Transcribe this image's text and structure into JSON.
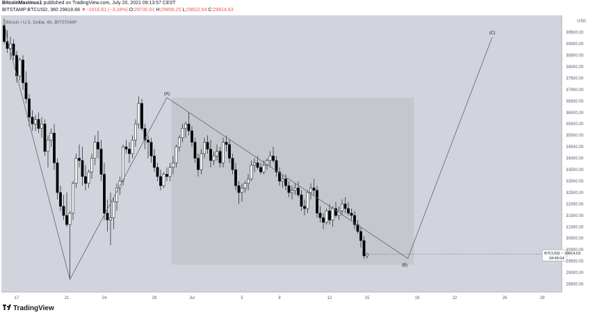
{
  "header": {
    "author": "BitcoinMaximus1",
    "published": "published on TradingView.com, July 20, 2021 09:13:57 CEST",
    "symbol_interval": "BITSTAMP:BTCUSD, 360",
    "last_price": "29818.68",
    "change_arrow": "▼",
    "change": "−1010.61 (−3.28%)",
    "open_label": "O:",
    "open": "29730.01",
    "high_label": "H:",
    "high": "29858.25",
    "low_label": "L:",
    "low": "29622.54",
    "close_label": "C:",
    "close": "29814.63"
  },
  "footer": {
    "brand": "TradingView"
  },
  "colors": {
    "chart_bg": "#d1d4dc",
    "box_fill": "#c3c5cc",
    "up": "#ffffff",
    "down": "#000000",
    "wick": "#2a2e39",
    "line": "#6b6e78",
    "axis_text": "#555965"
  },
  "chart_data": {
    "type": "candlestick",
    "title": "Bitcoin / U.S. Dollar, 6h, BITSTAMP",
    "currency": "USD",
    "price_label": "BTCUSD",
    "price_value": "29814.63",
    "countdown": "04:46:04",
    "y_ticks": [
      28500,
      29000,
      29500,
      30000,
      30500,
      31000,
      31500,
      32000,
      32500,
      33000,
      33500,
      34000,
      34500,
      35000,
      35500,
      36000,
      36500,
      37000,
      37500,
      38000,
      38500,
      39000,
      39500
    ],
    "y_tick_labels": [
      "28500.00",
      "29000.00",
      "29500.00",
      "30000.00",
      "30500.00",
      "31000.00",
      "31500.00",
      "32000.00",
      "32500.00",
      "33000.00",
      "33500.00",
      "34000.00",
      "34500.00",
      "35000.00",
      "35500.00",
      "36000.00",
      "36500.00",
      "37000.00",
      "37500.00",
      "38000.00",
      "38500.00",
      "39000.00",
      "39500.00"
    ],
    "ylim": [
      28150,
      40250
    ],
    "x_ticks": [
      {
        "label": "17",
        "bar": 4
      },
      {
        "label": "21",
        "bar": 20
      },
      {
        "label": "24",
        "bar": 32
      },
      {
        "label": "28",
        "bar": 48
      },
      {
        "label": "Jul",
        "bar": 60
      },
      {
        "label": "5",
        "bar": 76
      },
      {
        "label": "8",
        "bar": 88
      },
      {
        "label": "12",
        "bar": 104
      },
      {
        "label": "15",
        "bar": 116
      },
      {
        "label": "19",
        "bar": 132
      },
      {
        "label": "22",
        "bar": 144
      },
      {
        "label": "26",
        "bar": 160
      },
      {
        "label": "29",
        "bar": 172
      }
    ],
    "candles": [
      [
        39800,
        40100,
        39000,
        39100
      ],
      [
        39100,
        39600,
        38600,
        38800
      ],
      [
        38800,
        39300,
        38300,
        39000
      ],
      [
        39000,
        39200,
        38300,
        38500
      ],
      [
        38500,
        38700,
        37300,
        37600
      ],
      [
        37600,
        38400,
        37400,
        38300
      ],
      [
        38300,
        38500,
        37000,
        37300
      ],
      [
        37300,
        37800,
        36400,
        36600
      ],
      [
        36600,
        36800,
        35400,
        35800
      ],
      [
        35800,
        36100,
        35200,
        35500
      ],
      [
        35500,
        35900,
        35200,
        35700
      ],
      [
        35700,
        36000,
        35100,
        35300
      ],
      [
        35300,
        35800,
        34900,
        35500
      ],
      [
        35500,
        35700,
        34100,
        34300
      ],
      [
        34300,
        35000,
        33600,
        34800
      ],
      [
        34800,
        35300,
        34500,
        35100
      ],
      [
        35100,
        35500,
        33500,
        33800
      ],
      [
        33800,
        34000,
        32200,
        32500
      ],
      [
        32500,
        32800,
        31700,
        31900
      ],
      [
        31900,
        32400,
        31300,
        31500
      ],
      [
        31500,
        32500,
        31000,
        31100
      ],
      [
        31100,
        31700,
        28700,
        31600
      ],
      [
        31600,
        33000,
        31300,
        32900
      ],
      [
        32900,
        34200,
        32700,
        34000
      ],
      [
        34000,
        34600,
        33600,
        33900
      ],
      [
        33900,
        34500,
        32800,
        33200
      ],
      [
        33200,
        33700,
        32600,
        32900
      ],
      [
        32900,
        33500,
        32700,
        33400
      ],
      [
        33400,
        34200,
        33100,
        34000
      ],
      [
        34000,
        35000,
        33700,
        34700
      ],
      [
        34700,
        35200,
        34000,
        34400
      ],
      [
        34400,
        34800,
        33000,
        33300
      ],
      [
        33300,
        33800,
        31300,
        31600
      ],
      [
        31600,
        32200,
        30800,
        31300
      ],
      [
        31300,
        32500,
        30200,
        31400
      ],
      [
        31400,
        32300,
        30900,
        32100
      ],
      [
        32100,
        32900,
        31700,
        32700
      ],
      [
        32700,
        33200,
        32400,
        33000
      ],
      [
        33000,
        34600,
        32800,
        34500
      ],
      [
        34500,
        34800,
        34200,
        34400
      ],
      [
        34400,
        34700,
        33800,
        34200
      ],
      [
        34200,
        35000,
        34000,
        34800
      ],
      [
        34800,
        35700,
        34500,
        35500
      ],
      [
        35500,
        36700,
        35300,
        36400
      ],
      [
        36400,
        36600,
        35200,
        35300
      ],
      [
        35300,
        35500,
        34400,
        34800
      ],
      [
        34800,
        35000,
        34000,
        34700
      ],
      [
        34700,
        34900,
        33800,
        34100
      ],
      [
        34100,
        34400,
        33400,
        33600
      ],
      [
        33600,
        33800,
        33000,
        33200
      ],
      [
        33200,
        33500,
        32600,
        32800
      ],
      [
        32800,
        33400,
        32700,
        33300
      ],
      [
        33300,
        33600,
        33000,
        33200
      ],
      [
        33200,
        33800,
        33000,
        33600
      ],
      [
        33600,
        34100,
        33300,
        33800
      ],
      [
        33800,
        34600,
        33600,
        34500
      ],
      [
        34500,
        35000,
        34300,
        34900
      ],
      [
        34900,
        35500,
        34700,
        35300
      ],
      [
        35300,
        35600,
        34900,
        35500
      ],
      [
        35500,
        36000,
        35000,
        35200
      ],
      [
        35200,
        35400,
        34500,
        34700
      ],
      [
        34700,
        34900,
        33800,
        34000
      ],
      [
        34000,
        34200,
        33200,
        33500
      ],
      [
        33500,
        34400,
        33300,
        34200
      ],
      [
        34200,
        34900,
        34000,
        34700
      ],
      [
        34700,
        35000,
        34200,
        34400
      ],
      [
        34400,
        34800,
        33600,
        33900
      ],
      [
        33900,
        34300,
        33700,
        34100
      ],
      [
        34100,
        34600,
        33900,
        34300
      ],
      [
        34300,
        34500,
        33600,
        33800
      ],
      [
        33800,
        34900,
        33600,
        34700
      ],
      [
        34700,
        35000,
        34300,
        34600
      ],
      [
        34600,
        34800,
        33800,
        34000
      ],
      [
        34000,
        34200,
        33300,
        33500
      ],
      [
        33500,
        33800,
        32600,
        32800
      ],
      [
        32800,
        33000,
        32000,
        32500
      ],
      [
        32500,
        32900,
        32100,
        32700
      ],
      [
        32700,
        33000,
        32500,
        32900
      ],
      [
        32900,
        33300,
        32600,
        33100
      ],
      [
        33100,
        33900,
        33000,
        33700
      ],
      [
        33700,
        34000,
        33400,
        33800
      ],
      [
        33800,
        34100,
        33500,
        33600
      ],
      [
        33600,
        33800,
        33300,
        33400
      ],
      [
        33400,
        33900,
        33300,
        33700
      ],
      [
        33700,
        34000,
        33500,
        33900
      ],
      [
        33900,
        34300,
        33600,
        34100
      ],
      [
        34100,
        34500,
        33800,
        33900
      ],
      [
        33900,
        34100,
        33200,
        33400
      ],
      [
        33400,
        33600,
        32800,
        33000
      ],
      [
        33000,
        33300,
        32700,
        33100
      ],
      [
        33100,
        33300,
        32600,
        32800
      ],
      [
        32800,
        33000,
        32300,
        32500
      ],
      [
        32500,
        32800,
        32200,
        32600
      ],
      [
        32600,
        32900,
        32400,
        32700
      ],
      [
        32700,
        33000,
        32300,
        32400
      ],
      [
        32400,
        32600,
        31700,
        31900
      ],
      [
        31900,
        32200,
        31500,
        31800
      ],
      [
        31800,
        32600,
        31600,
        32500
      ],
      [
        32500,
        32900,
        32200,
        32700
      ],
      [
        32700,
        33100,
        32400,
        32600
      ],
      [
        32600,
        32800,
        31400,
        31600
      ],
      [
        31600,
        31900,
        31200,
        31400
      ],
      [
        31400,
        31600,
        30900,
        31200
      ],
      [
        31200,
        31800,
        31100,
        31700
      ],
      [
        31700,
        32000,
        31100,
        31300
      ],
      [
        31300,
        31900,
        31000,
        31800
      ],
      [
        31800,
        32100,
        31400,
        31500
      ],
      [
        31500,
        31900,
        31300,
        31700
      ],
      [
        31700,
        32200,
        31500,
        32000
      ],
      [
        32000,
        32300,
        31600,
        31800
      ],
      [
        31800,
        32100,
        31500,
        31600
      ],
      [
        31600,
        31800,
        31300,
        31500
      ],
      [
        31500,
        31700,
        30900,
        31100
      ],
      [
        31100,
        31300,
        30700,
        30800
      ],
      [
        30800,
        31000,
        30100,
        30400
      ],
      [
        30400,
        30600,
        29600,
        29730
      ],
      [
        29730,
        29860,
        29620,
        29815
      ]
    ],
    "annotations": [
      {
        "label": "(A)",
        "bar": 52,
        "price": 36650
      },
      {
        "label": "(B)",
        "bar": 128,
        "price": 29550
      },
      {
        "label": "(C)",
        "bar": 156,
        "price": 39300
      }
    ],
    "box": {
      "bar_from": 53.5,
      "bar_to": 131,
      "price_from": 29350,
      "price_to": 36650
    },
    "path_points": [
      {
        "bar": 0,
        "price": 39950
      },
      {
        "bar": 1,
        "price": 39200
      },
      {
        "bar": 21,
        "price": 28700
      },
      {
        "bar": 52,
        "price": 36650
      },
      {
        "bar": 129,
        "price": 29620
      },
      {
        "bar": 156,
        "price": 39300
      }
    ]
  }
}
